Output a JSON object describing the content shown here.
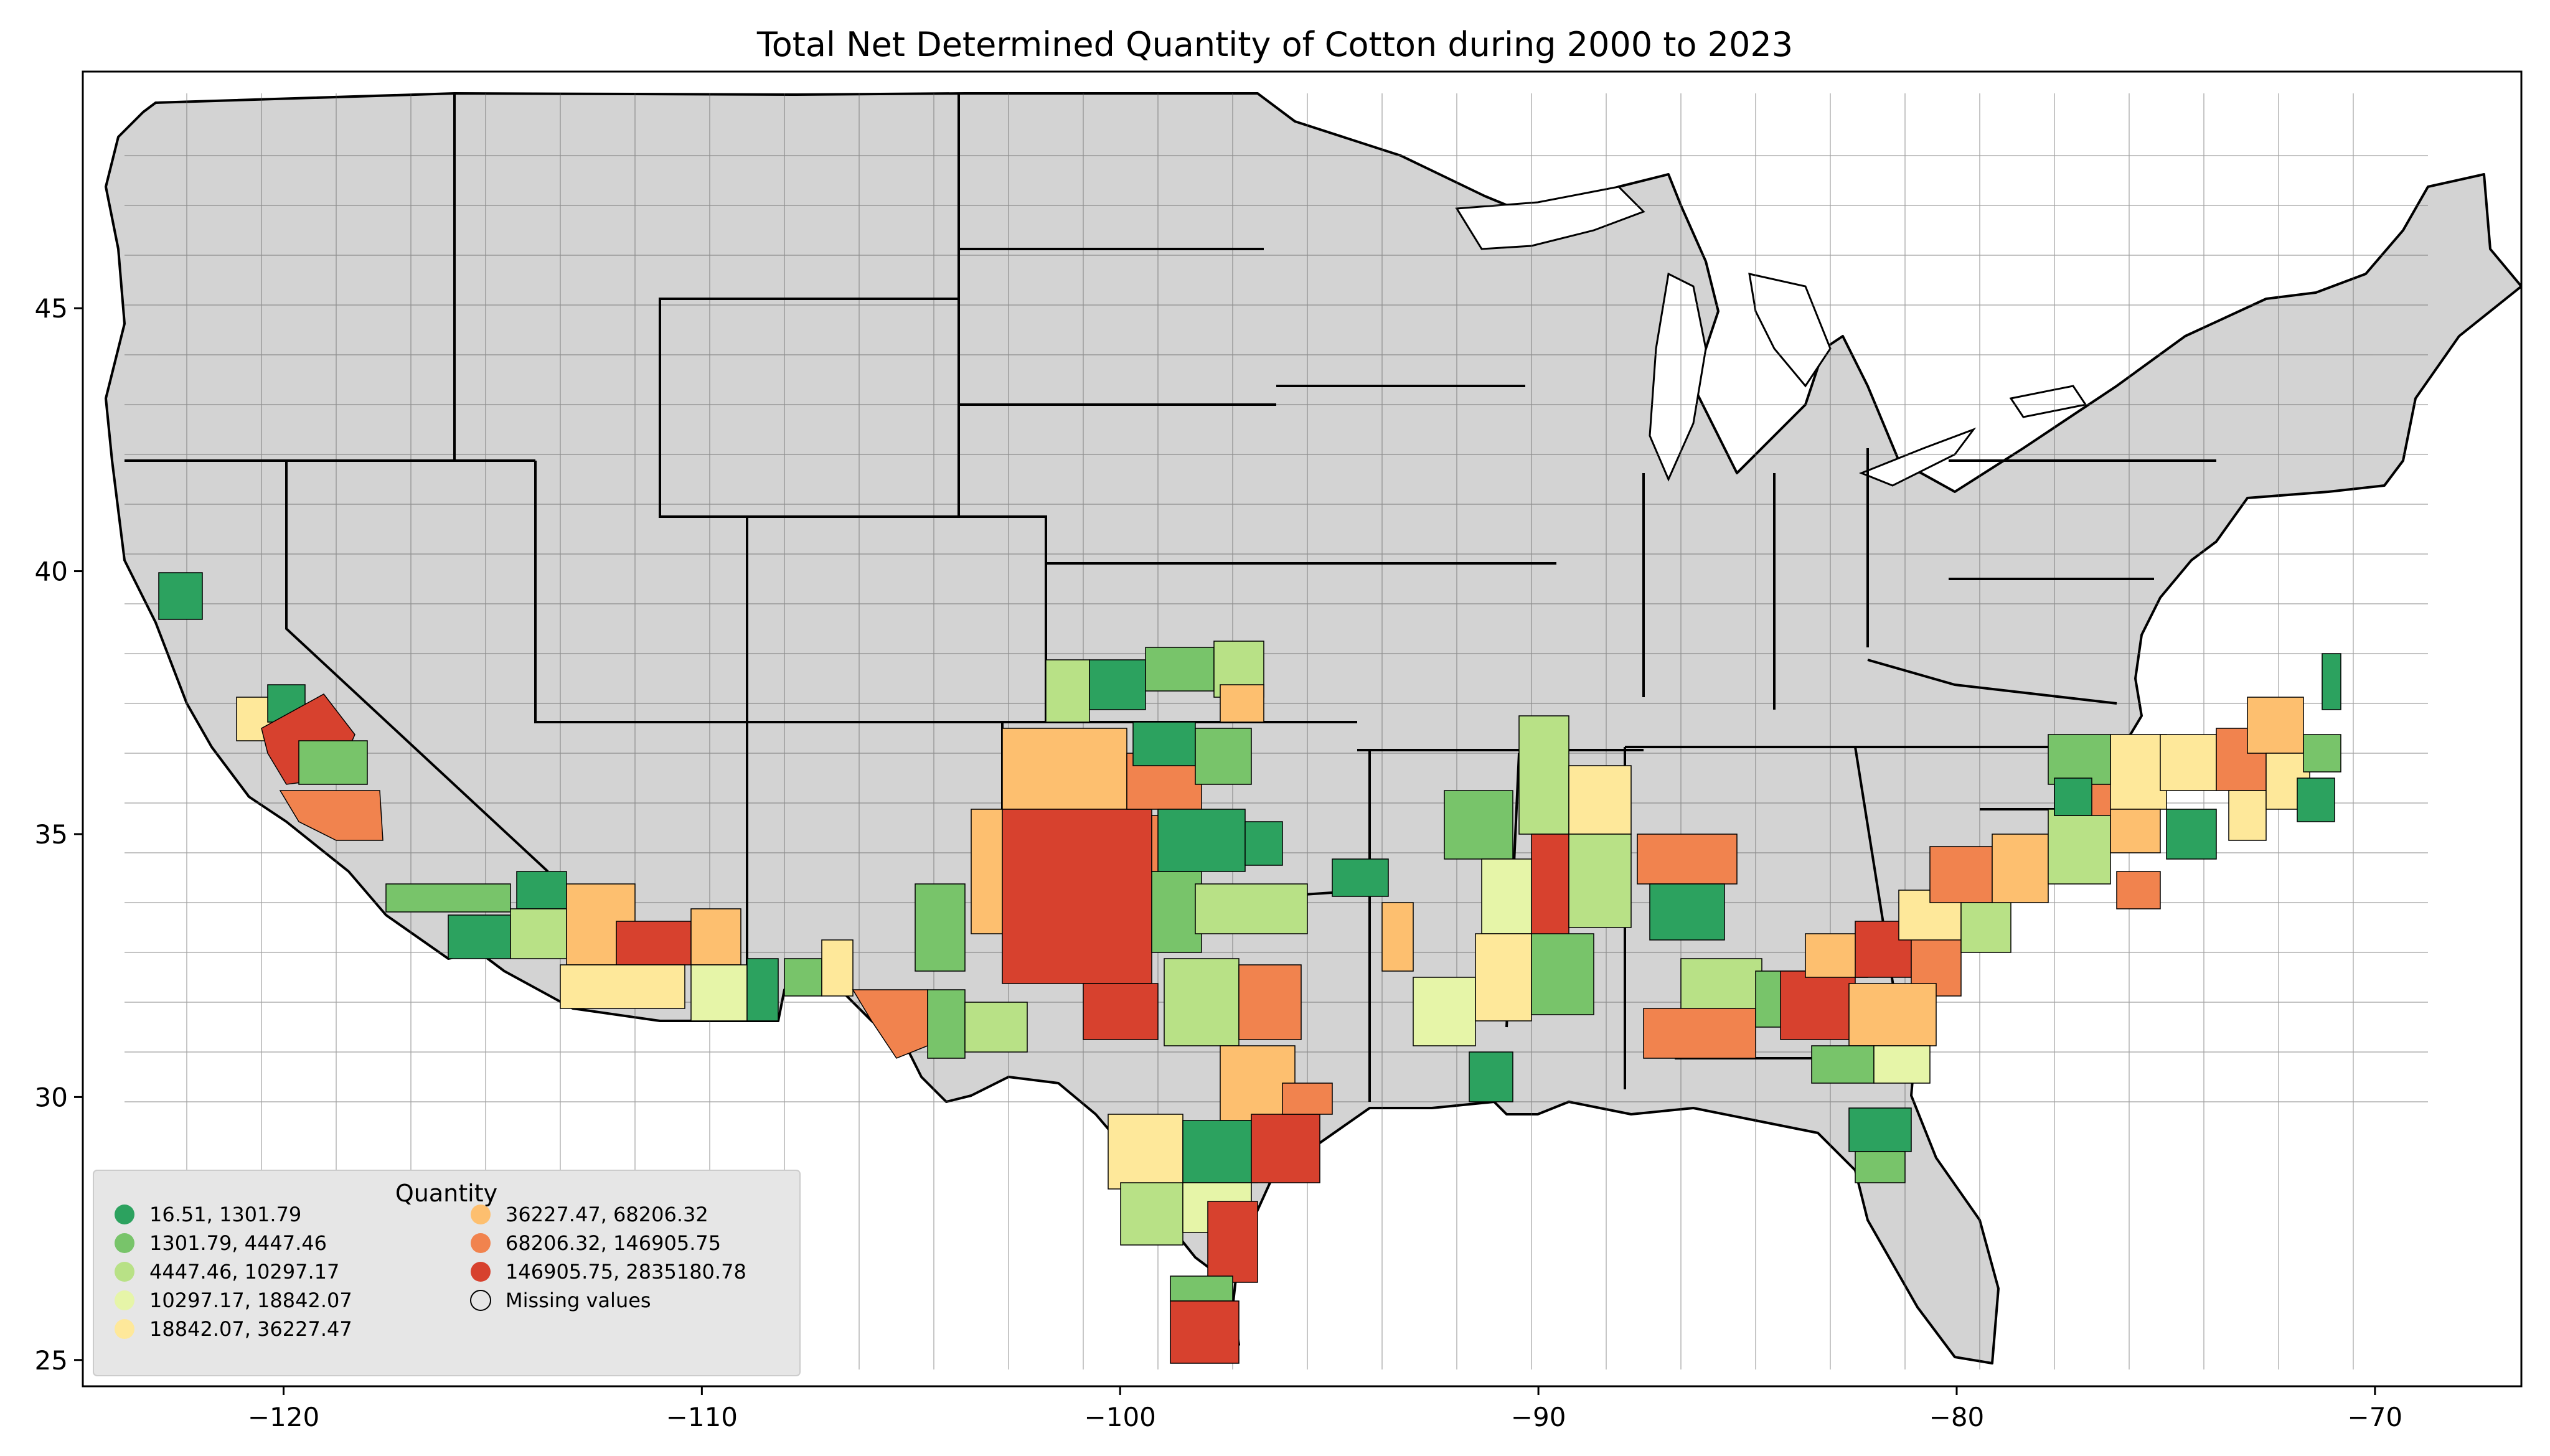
{
  "title": "Total Net Determined Quantity of Cotton during 2000 to 2023",
  "axes": {
    "x_ticks": [
      {
        "value": -120,
        "label": "−120"
      },
      {
        "value": -110,
        "label": "−110"
      },
      {
        "value": -100,
        "label": "−100"
      },
      {
        "value": -90,
        "label": "−90"
      },
      {
        "value": -80,
        "label": "−80"
      },
      {
        "value": -70,
        "label": "−70"
      }
    ],
    "y_ticks": [
      {
        "value": 45,
        "label": "45"
      },
      {
        "value": 40,
        "label": "40"
      },
      {
        "value": 35,
        "label": "35"
      },
      {
        "value": 30,
        "label": "30"
      },
      {
        "value": 25,
        "label": "25"
      }
    ],
    "xlim": [
      -124.8,
      -66.5
    ],
    "ylim": [
      24.5,
      49.5
    ]
  },
  "legend": {
    "title": "Quantity",
    "position": "lower-left",
    "entries": [
      {
        "label": "16.51,    1301.79",
        "color": "#2ca25f"
      },
      {
        "label": "1301.79,    4447.46",
        "color": "#78c46a"
      },
      {
        "label": "4447.46,   10297.17",
        "color": "#b8e186"
      },
      {
        "label": "10297.17,   18842.07",
        "color": "#e6f5a8"
      },
      {
        "label": "18842.07,   36227.47",
        "color": "#fee89a"
      },
      {
        "label": "36227.47,   68206.32",
        "color": "#fdbf6f"
      },
      {
        "label": "68206.32,  146905.75",
        "color": "#f1834e"
      },
      {
        "label": "146905.75, 2835180.78",
        "color": "#d7412e"
      },
      {
        "label": "Missing values",
        "color": "#d3d3d3"
      }
    ]
  },
  "colors": {
    "missing": "#d3d3d3",
    "border": "#000000"
  }
}
